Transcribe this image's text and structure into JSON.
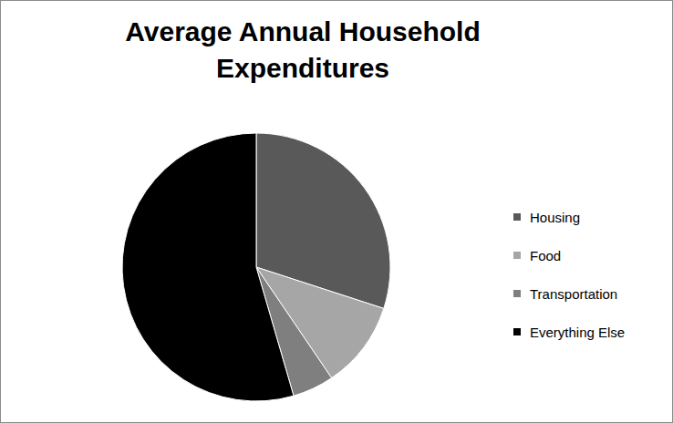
{
  "chart_data": {
    "type": "pie",
    "title": "Average Annual Household Expenditures",
    "categories": [
      "Housing",
      "Food",
      "Transportation",
      "Everything Else"
    ],
    "values": [
      30,
      10.5,
      5,
      54.5
    ],
    "colors": [
      "#595959",
      "#a6a6a6",
      "#7f7f7f",
      "#000000"
    ]
  }
}
